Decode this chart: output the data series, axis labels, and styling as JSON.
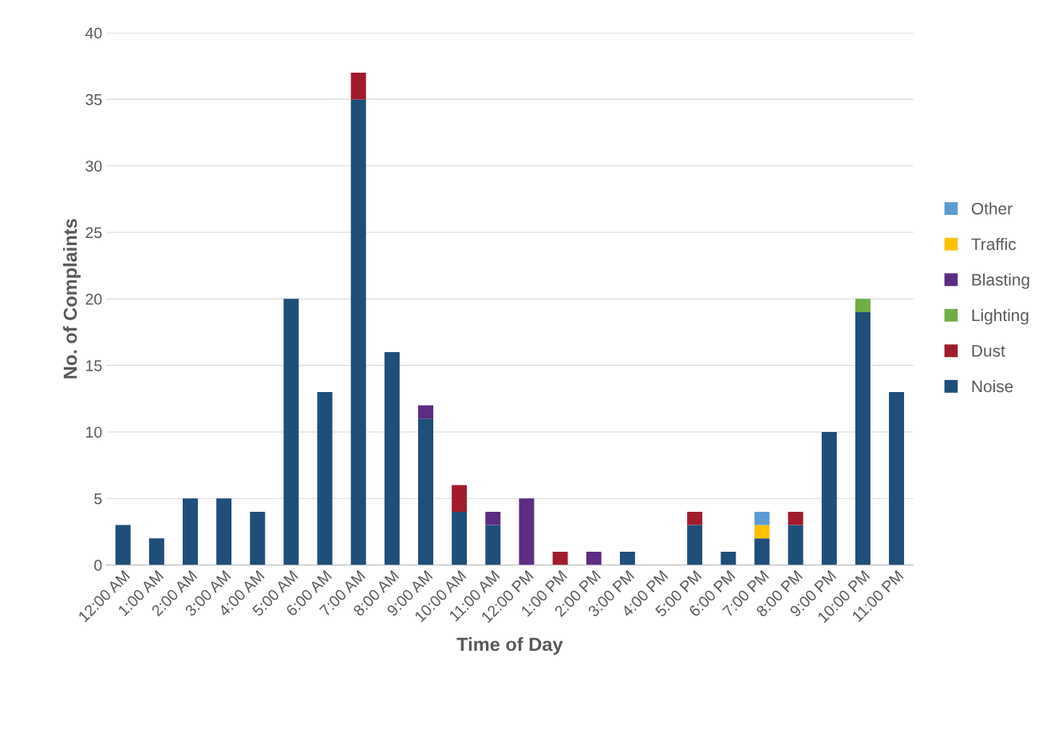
{
  "chart_data": {
    "type": "bar",
    "stacked": true,
    "xlabel": "Time of Day",
    "ylabel": "No. of Complaints",
    "categories": [
      "12:00 AM",
      "1:00 AM",
      "2:00 AM",
      "3:00 AM",
      "4:00 AM",
      "5:00 AM",
      "6:00 AM",
      "7:00 AM",
      "8:00 AM",
      "9:00 AM",
      "10:00 AM",
      "11:00 AM",
      "12:00 PM",
      "1:00 PM",
      "2:00 PM",
      "3:00 PM",
      "4:00 PM",
      "5:00 PM",
      "6:00 PM",
      "7:00 PM",
      "8:00 PM",
      "9:00 PM",
      "10:00 PM",
      "11:00 PM"
    ],
    "series": [
      {
        "name": "Noise",
        "color": "#1f4e79",
        "values": [
          3,
          2,
          5,
          5,
          4,
          20,
          13,
          35,
          16,
          11,
          4,
          3,
          0,
          0,
          0,
          1,
          0,
          3,
          1,
          2,
          3,
          10,
          19,
          13
        ]
      },
      {
        "name": "Dust",
        "color": "#a01c2c",
        "values": [
          0,
          0,
          0,
          0,
          0,
          0,
          0,
          2,
          0,
          0,
          2,
          0,
          0,
          1,
          0,
          0,
          0,
          1,
          0,
          0,
          1,
          0,
          0,
          0
        ]
      },
      {
        "name": "Lighting",
        "color": "#70ad47",
        "values": [
          0,
          0,
          0,
          0,
          0,
          0,
          0,
          0,
          0,
          0,
          0,
          0,
          0,
          0,
          0,
          0,
          0,
          0,
          0,
          0,
          0,
          0,
          1,
          0
        ]
      },
      {
        "name": "Blasting",
        "color": "#5c2d82",
        "values": [
          0,
          0,
          0,
          0,
          0,
          0,
          0,
          0,
          0,
          1,
          0,
          1,
          5,
          0,
          1,
          0,
          0,
          0,
          0,
          0,
          0,
          0,
          0,
          0
        ]
      },
      {
        "name": "Traffic",
        "color": "#ffc000",
        "values": [
          0,
          0,
          0,
          0,
          0,
          0,
          0,
          0,
          0,
          0,
          0,
          0,
          0,
          0,
          0,
          0,
          0,
          0,
          0,
          1,
          0,
          0,
          0,
          0
        ]
      },
      {
        "name": "Other",
        "color": "#5b9bd5",
        "values": [
          0,
          0,
          0,
          0,
          0,
          0,
          0,
          0,
          0,
          0,
          0,
          0,
          0,
          0,
          0,
          0,
          0,
          0,
          0,
          1,
          0,
          0,
          0,
          0
        ]
      }
    ],
    "ylim": [
      0,
      40
    ],
    "yticks": [
      0,
      5,
      10,
      15,
      20,
      25,
      30,
      35,
      40
    ],
    "grid": "y",
    "legend": "right"
  }
}
